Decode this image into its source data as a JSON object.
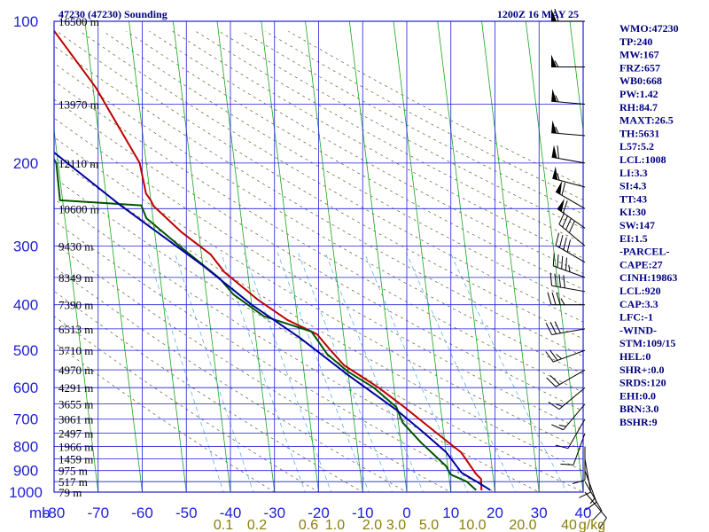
{
  "header": {
    "station": "47230 (47230) Sounding",
    "time": "1200Z 16 MAY 25"
  },
  "chart_data": {
    "type": "line",
    "title": "47230 (47230) Sounding",
    "subtitle": "1200Z 16 MAY 25",
    "xlabel": "",
    "ylabel": "mb",
    "xlim": [
      -80,
      40
    ],
    "ylim": [
      1000,
      100
    ],
    "y_scale": "log",
    "x_ticks": [
      {
        "value": -80,
        "label": "-80"
      },
      {
        "value": -70,
        "label": "-70"
      },
      {
        "value": -60,
        "label": "-60"
      },
      {
        "value": -50,
        "label": "-50"
      },
      {
        "value": -40,
        "label": "-40"
      },
      {
        "value": -30,
        "label": "-30"
      },
      {
        "value": -20,
        "label": "-20"
      },
      {
        "value": -10,
        "label": "-10"
      },
      {
        "value": 0,
        "label": "0"
      },
      {
        "value": 10,
        "label": "10"
      },
      {
        "value": 20,
        "label": "20"
      },
      {
        "value": 30,
        "label": "30"
      },
      {
        "value": 40,
        "label": "40"
      }
    ],
    "y_ticks": [
      {
        "value": 100,
        "label": "100"
      },
      {
        "value": 200,
        "label": "200"
      },
      {
        "value": 300,
        "label": "300"
      },
      {
        "value": 400,
        "label": "400"
      },
      {
        "value": 500,
        "label": "500"
      },
      {
        "value": 600,
        "label": "600"
      },
      {
        "value": 700,
        "label": "700"
      },
      {
        "value": 800,
        "label": "800"
      },
      {
        "value": 900,
        "label": "900"
      },
      {
        "value": 1000,
        "label": "1000"
      }
    ],
    "height_labels": [
      {
        "p": 100,
        "label": "16500 m"
      },
      {
        "p": 150,
        "label": "13970 m"
      },
      {
        "p": 200,
        "label": "12110 m"
      },
      {
        "p": 250,
        "label": "10600 m"
      },
      {
        "p": 300,
        "label": "9430 m"
      },
      {
        "p": 350,
        "label": "8349 m"
      },
      {
        "p": 400,
        "label": "7390 m"
      },
      {
        "p": 450,
        "label": "6513 m"
      },
      {
        "p": 500,
        "label": "5710 m"
      },
      {
        "p": 550,
        "label": "4970 m"
      },
      {
        "p": 600,
        "label": "4291 m"
      },
      {
        "p": 650,
        "label": "3655 m"
      },
      {
        "p": 700,
        "label": "3061 m"
      },
      {
        "p": 750,
        "label": "2497 m"
      },
      {
        "p": 800,
        "label": "1966 m"
      },
      {
        "p": 850,
        "label": "1459 m"
      },
      {
        "p": 900,
        "label": "975 m"
      },
      {
        "p": 950,
        "label": "517 m"
      },
      {
        "p": 1000,
        "label": "79 m"
      }
    ],
    "mixing_ratio_labels": [
      "0.1",
      "0.2",
      "0.6",
      "1.0",
      "2.0",
      "3.0",
      "5.0",
      "10.0",
      "20.0",
      "40",
      "g/kg"
    ],
    "series": [
      {
        "color": "#c00000",
        "points": [
          {
            "t": -68.6,
            "p": 100
          },
          {
            "t": -59.4,
            "p": 138
          },
          {
            "t": -51.5,
            "p": 200
          },
          {
            "t": -50.9,
            "p": 232
          },
          {
            "t": -50.0,
            "p": 240
          },
          {
            "t": -49.5,
            "p": 247
          },
          {
            "t": -44.0,
            "p": 280
          },
          {
            "t": -37.9,
            "p": 313
          },
          {
            "t": -35.3,
            "p": 341
          },
          {
            "t": -28.5,
            "p": 390
          },
          {
            "t": -22.3,
            "p": 431
          },
          {
            "t": -16.0,
            "p": 462
          },
          {
            "t": -13.5,
            "p": 498
          },
          {
            "t": -10.7,
            "p": 538
          },
          {
            "t": -3.5,
            "p": 600
          },
          {
            "t": 1.8,
            "p": 660
          },
          {
            "t": 7.4,
            "p": 735
          },
          {
            "t": 11.2,
            "p": 790
          },
          {
            "t": 13.4,
            "p": 823
          },
          {
            "t": 16.2,
            "p": 915
          },
          {
            "t": 17.2,
            "p": 938
          },
          {
            "t": 17.0,
            "p": 992
          }
        ]
      },
      {
        "color": "#005500",
        "points": [
          {
            "t": -80.0,
            "p": 135
          },
          {
            "t": -70.4,
            "p": 200
          },
          {
            "t": -70.6,
            "p": 240
          },
          {
            "t": -52.3,
            "p": 246
          },
          {
            "t": -51.5,
            "p": 262
          },
          {
            "t": -44.6,
            "p": 301
          },
          {
            "t": -36.5,
            "p": 352
          },
          {
            "t": -33.9,
            "p": 380
          },
          {
            "t": -27.6,
            "p": 423
          },
          {
            "t": -17.2,
            "p": 456
          },
          {
            "t": -14.2,
            "p": 510
          },
          {
            "t": -10.0,
            "p": 555
          },
          {
            "t": -4.6,
            "p": 600
          },
          {
            "t": 0.0,
            "p": 660
          },
          {
            "t": 1.0,
            "p": 712
          },
          {
            "t": 4.6,
            "p": 785
          },
          {
            "t": 9.6,
            "p": 880
          },
          {
            "t": 10.4,
            "p": 917
          },
          {
            "t": 13.9,
            "p": 950
          },
          {
            "t": 15.8,
            "p": 990
          }
        ]
      },
      {
        "color": "#0000a0",
        "points": [
          {
            "t": -80.0,
            "p": 159
          },
          {
            "t": -57.0,
            "p": 246
          },
          {
            "t": -40.0,
            "p": 330
          },
          {
            "t": -30.0,
            "p": 400
          },
          {
            "t": -20.0,
            "p": 470
          },
          {
            "t": -10.0,
            "p": 565
          },
          {
            "t": 0.0,
            "p": 670
          },
          {
            "t": 5.0,
            "p": 740
          },
          {
            "t": 10.0,
            "p": 822
          },
          {
            "t": 13.0,
            "p": 910
          },
          {
            "t": 16.0,
            "p": 948
          },
          {
            "t": 19.0,
            "p": 990
          }
        ]
      }
    ],
    "wind_barbs": [
      {
        "p": 100,
        "dir": 270,
        "kt": 60
      },
      {
        "p": 125,
        "dir": 270,
        "kt": 55
      },
      {
        "p": 150,
        "dir": 275,
        "kt": 55
      },
      {
        "p": 175,
        "dir": 275,
        "kt": 55
      },
      {
        "p": 200,
        "dir": 280,
        "kt": 60
      },
      {
        "p": 225,
        "dir": 285,
        "kt": 55
      },
      {
        "p": 250,
        "dir": 300,
        "kt": 60
      },
      {
        "p": 275,
        "dir": 305,
        "kt": 60
      },
      {
        "p": 300,
        "dir": 310,
        "kt": 40
      },
      {
        "p": 325,
        "dir": 300,
        "kt": 40
      },
      {
        "p": 350,
        "dir": 290,
        "kt": 45
      },
      {
        "p": 375,
        "dir": 280,
        "kt": 40
      },
      {
        "p": 400,
        "dir": 270,
        "kt": 35
      },
      {
        "p": 450,
        "dir": 260,
        "kt": 30
      },
      {
        "p": 500,
        "dir": 250,
        "kt": 25
      },
      {
        "p": 550,
        "dir": 240,
        "kt": 20
      },
      {
        "p": 600,
        "dir": 230,
        "kt": 15
      },
      {
        "p": 650,
        "dir": 220,
        "kt": 15
      },
      {
        "p": 700,
        "dir": 210,
        "kt": 10
      },
      {
        "p": 750,
        "dir": 200,
        "kt": 10
      },
      {
        "p": 800,
        "dir": 180,
        "kt": 10
      },
      {
        "p": 850,
        "dir": 170,
        "kt": 10
      },
      {
        "p": 900,
        "dir": 160,
        "kt": 15
      },
      {
        "p": 950,
        "dir": 150,
        "kt": 10
      },
      {
        "p": 1000,
        "dir": 140,
        "kt": 10
      }
    ]
  },
  "indices": [
    "WMO:47230",
    "TP:240",
    "MW:167",
    "FRZ:657",
    "WB0:668",
    "PW:1.42",
    "RH:84.7",
    "MAXT:26.5",
    "TH:5631",
    "L57:5.2",
    "LCL:1008",
    "LI:3.3",
    "SI:4.3",
    "TT:43",
    "KI:30",
    "SW:147",
    "EI:1.5",
    "-PARCEL-",
    "CAPE:27",
    "CINH:19863",
    "LCL:920",
    "CAP:3.3",
    "LFC:-1",
    "-WIND-",
    "STM:109/15",
    "HEL:0",
    "SHR+:0.0",
    "SRDS:120",
    "EHI:0.0",
    "BRN:3.0",
    "BSHR:9"
  ]
}
